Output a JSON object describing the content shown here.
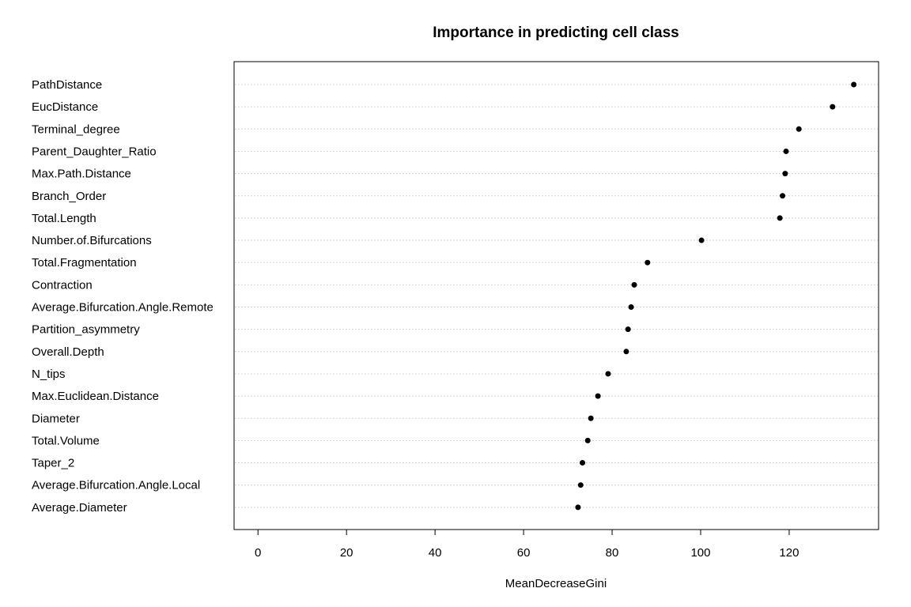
{
  "chart_data": {
    "type": "scatter",
    "title": "Importance in predicting cell class",
    "xlabel": "MeanDecreaseGini",
    "ylabel": "",
    "xlim": [
      -5.4,
      140.2
    ],
    "xticks": [
      0,
      20,
      40,
      60,
      80,
      100,
      120
    ],
    "grid": "horizontal dotted",
    "categories": [
      "PathDistance",
      "EucDistance",
      "Terminal_degree",
      "Parent_Daughter_Ratio",
      "Max.Path.Distance",
      "Branch_Order",
      "Total.Length",
      "Number.of.Bifurcations",
      "Total.Fragmentation",
      "Contraction",
      "Average.Bifurcation.Angle.Remote",
      "Partition_asymmetry",
      "Overall.Depth",
      "N_tips",
      "Max.Euclidean.Distance",
      "Diameter",
      "Total.Volume",
      "Taper_2",
      "Average.Bifurcation.Angle.Local",
      "Average.Diameter"
    ],
    "values": [
      134.6,
      129.8,
      122.2,
      119.3,
      119.1,
      118.5,
      117.9,
      100.2,
      88.0,
      85.0,
      84.3,
      83.6,
      83.2,
      79.1,
      76.8,
      75.2,
      74.5,
      73.3,
      72.9,
      72.3
    ]
  }
}
